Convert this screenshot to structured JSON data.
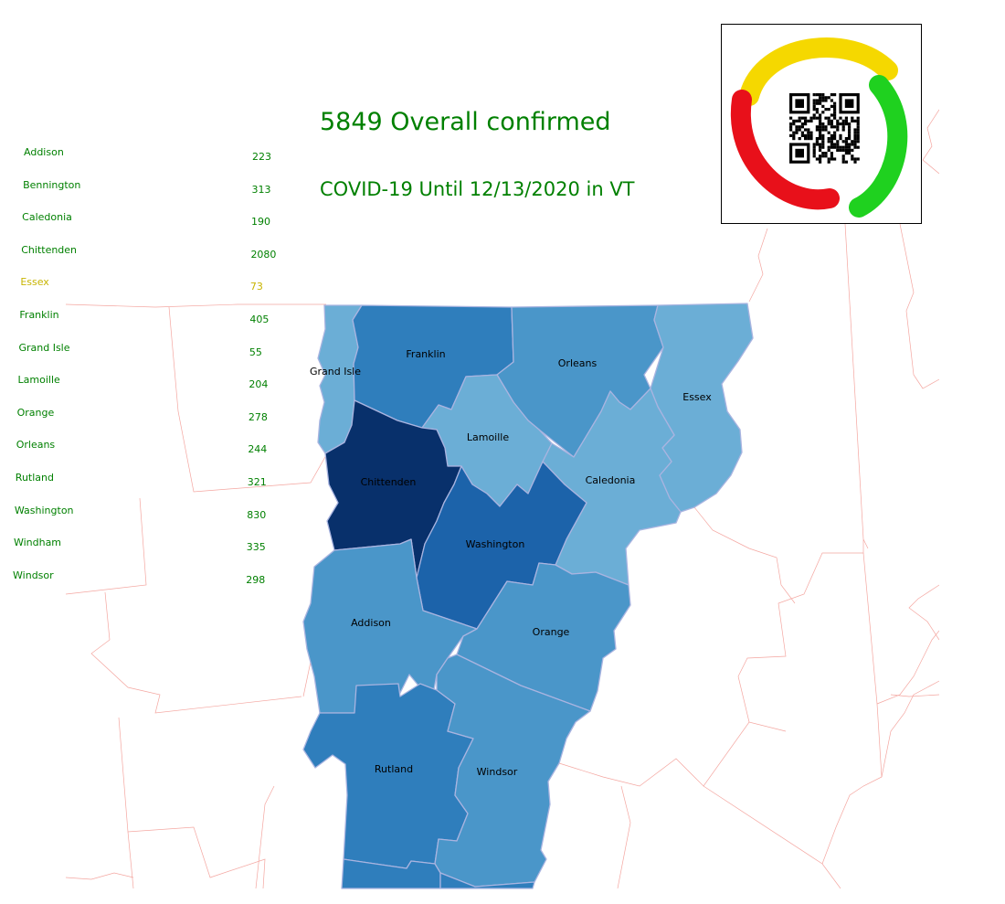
{
  "header": {
    "title": "5849 Overall confirmed",
    "subtitle": "COVID-19 Until 12/13/2020 in VT"
  },
  "colors": {
    "text_accent": "#008000",
    "highlight": "#c8b400",
    "state_border": "#f4a6a0",
    "county_border": "#a9b4e0",
    "choropleth_scale": [
      "#6baed6",
      "#4a96c9",
      "#2f7ebc",
      "#1c63aa",
      "#08306b"
    ]
  },
  "legend": {
    "items": [
      {
        "county": "Addison",
        "cases": "223",
        "highlighted": false
      },
      {
        "county": "Bennington",
        "cases": "313",
        "highlighted": false
      },
      {
        "county": "Caledonia",
        "cases": "190",
        "highlighted": false
      },
      {
        "county": "Chittenden",
        "cases": "2080",
        "highlighted": false
      },
      {
        "county": "Essex",
        "cases": "73",
        "highlighted": true
      },
      {
        "county": "Franklin",
        "cases": "405",
        "highlighted": false
      },
      {
        "county": "Grand Isle",
        "cases": "55",
        "highlighted": false
      },
      {
        "county": "Lamoille",
        "cases": "204",
        "highlighted": false
      },
      {
        "county": "Orange",
        "cases": "278",
        "highlighted": false
      },
      {
        "county": "Orleans",
        "cases": "244",
        "highlighted": false
      },
      {
        "county": "Rutland",
        "cases": "321",
        "highlighted": false
      },
      {
        "county": "Washington",
        "cases": "830",
        "highlighted": false
      },
      {
        "county": "Windham",
        "cases": "335",
        "highlighted": false
      },
      {
        "county": "Windsor",
        "cases": "298",
        "highlighted": false
      }
    ]
  },
  "map": {
    "labels": {
      "grand_isle": "Grand Isle",
      "franklin": "Franklin",
      "orleans": "Orleans",
      "essex": "Essex",
      "lamoille": "Lamoille",
      "chittenden": "Chittenden",
      "caledonia": "Caledonia",
      "washington": "Washington",
      "addison": "Addison",
      "orange": "Orange",
      "rutland": "Rutland",
      "windsor": "Windsor"
    }
  },
  "logo": {
    "icon": "qr-code-icon",
    "ring_colors": [
      "#f5d800",
      "#1fd11f",
      "#e8101a"
    ]
  }
}
